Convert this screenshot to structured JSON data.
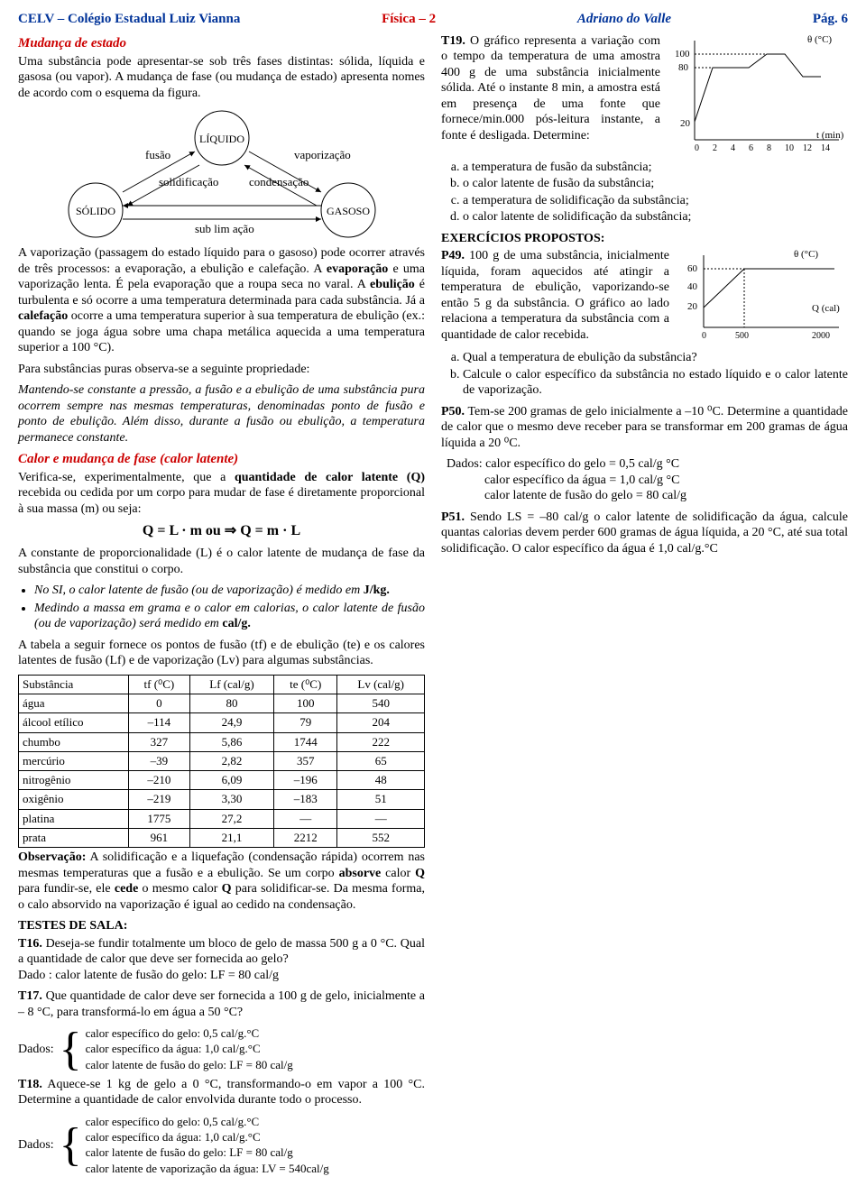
{
  "header": {
    "left": "CELV – Colégio Estadual Luiz Vianna",
    "mid": "Física – 2",
    "author": "Adriano do Valle",
    "page": "Pág. 6"
  },
  "s1_title": "Mudança de estado",
  "s1_p1": "Uma substância pode apresentar-se sob três fases distintas: sólida, líquida e gasosa (ou vapor). A mudança de fase (ou mudança de estado) apresenta nomes de acordo com o esquema da figura.",
  "diagram": {
    "solido": "SÓLIDO",
    "liquido": "LÍQUIDO",
    "gasoso": "GASOSO",
    "fusao": "fusão",
    "vaporizacao": "vaporização",
    "solidificacao": "solidificação",
    "condensacao": "condensação",
    "sublimacao": "sub lim ação"
  },
  "s1_p2a": "A vaporização (passagem do estado líquido para o gasoso) pode ocorrer através de três processos: a evaporação, a ebulição e calefação. A ",
  "s1_p2b": "evaporação",
  "s1_p2c": " e uma vaporização lenta. É pela evaporação que a roupa seca no varal. A ",
  "s1_p2d": "ebulição",
  "s1_p2e": " é turbulenta e só ocorre a uma temperatura determinada para cada substância. Já a ",
  "s1_p2f": "calefação",
  "s1_p2g": " ocorre a uma temperatura superior à sua temperatura de ebulição (ex.: quando se joga água sobre uma chapa metálica aquecida a uma temperatura superior a 100 °C).",
  "s1_p3": "Para substâncias puras observa-se a seguinte propriedade:",
  "s1_p4": "Mantendo-se constante a pressão, a fusão e a ebulição de uma substância pura ocorrem sempre nas mesmas temperaturas, denominadas ponto de fusão e ponto de ebulição. Além disso, durante a fusão ou ebulição, a temperatura permanece constante.",
  "s2_title": "Calor e mudança de fase (calor latente)",
  "s2_p1a": "Verifica-se, experimentalmente, que a ",
  "s2_p1b": "quantidade de calor latente (Q)",
  "s2_p1c": " recebida ou cedida por um corpo para mudar de fase é diretamente proporcional à sua massa (m) ou seja:",
  "formula": "Q = L · m   ou   ⇒   Q = m · L",
  "s2_p2": "A constante de proporcionalidade (L) é o calor latente de mudança de fase da substância que constitui o corpo.",
  "bul1a": "No SI, o calor latente de fusão (ou de vaporização) é medido em ",
  "bul1b": "J/kg.",
  "bul2a": "Medindo a massa em grama e o calor em calorias, o calor latente de fusão (ou de vaporização) será medido em ",
  "bul2b": "cal/g.",
  "tbl_intro": "A tabela a seguir fornece os pontos de fusão (tf) e de ebulição (te) e os calores latentes de fusão (Lf) e de vaporização (Lv) para algumas substâncias.",
  "table": {
    "cols": [
      "Substância",
      "tf (⁰C)",
      "Lf (cal/g)",
      "te (⁰C)",
      "Lv (cal/g)"
    ],
    "rows": [
      [
        "água",
        "0",
        "80",
        "100",
        "540"
      ],
      [
        "álcool etílico",
        "–114",
        "24,9",
        "79",
        "204"
      ],
      [
        "chumbo",
        "327",
        "5,86",
        "1744",
        "222"
      ],
      [
        "mercúrio",
        "–39",
        "2,82",
        "357",
        "65"
      ],
      [
        "nitrogênio",
        "–210",
        "6,09",
        "–196",
        "48"
      ],
      [
        "oxigênio",
        "–219",
        "3,30",
        "–183",
        "51"
      ],
      [
        "platina",
        "1775",
        "27,2",
        "—",
        "—"
      ],
      [
        "prata",
        "961",
        "21,1",
        "2212",
        "552"
      ]
    ]
  },
  "obs_a": "Observação:",
  "obs_b": " A solidificação e a liquefação (condensação rápida) ocorrem nas mesmas temperaturas que a fusão e a ebulição. Se um corpo ",
  "obs_c": "absorve",
  "obs_d": " calor ",
  "obs_e": "Q",
  "obs_f": " para fundir-se, ele ",
  "obs_g": "cede",
  "obs_h": " o mesmo calor ",
  "obs_i": "Q",
  "obs_j": " para solidificar-se. Da mesma forma, o calo absorvido na vaporização é igual ao cedido na condensação.",
  "tests_hdr": "TESTES DE SALA:",
  "t16a": "T16.",
  "t16b": " Deseja-se fundir totalmente um bloco de gelo de massa 500 g a 0 °C. Qual a quantidade de calor que deve ser fornecida ao gelo?",
  "t16c": "Dado : calor latente de fusão do gelo: LF = 80 cal/g",
  "t17a": "T17.",
  "t17b": " Que quantidade de calor deve ser fornecida a 100 g de gelo, inicialmente a – 8 °C, para transformá-lo em água a 50 °C?",
  "t17_dados_label": "Dados:",
  "t17_d1": "calor específico do gelo: 0,5 cal/g.°C",
  "t17_d2": "calor específico da água: 1,0 cal/g.°C",
  "t17_d3": "calor latente de fusão do gelo: LF = 80 cal/g",
  "t18a": "T18.",
  "t18b": " Aquece-se 1 kg de gelo a 0 °C, transformando-o em vapor a 100 °C. Determine a quantidade de calor envolvida durante todo o processo.",
  "t18_dados_label": "Dados:",
  "t18_d1": "calor específico do gelo: 0,5 cal/g.°C",
  "t18_d2": "calor específico da água: 1,0 cal/g.°C",
  "t18_d3": "calor latente de fusão do gelo: LF = 80 cal/g",
  "t18_d4": "calor latente de vaporização da água: LV = 540cal/g",
  "t19a": "T19.",
  "t19b": " O gráfico representa a variação com o tempo da temperatura de uma amostra 400 g de uma substância inicialmente sólida. Até o instante 8 min, a amostra está em presença de uma fonte que fornece/min.000 pós-leitura instante, a fonte é desligada. Determine:",
  "t19_opts": [
    "a temperatura de fusão da substância;",
    "o calor latente de fusão da substância;",
    "a temperatura de solidificação da substância;",
    "o calor latente de solidificação da substância;"
  ],
  "graph1": {
    "ylabel": "θ (°C)",
    "xlabel": "t (min)",
    "yvals": [
      "100",
      "80",
      "20"
    ],
    "xvals": [
      "0",
      "2",
      "4",
      "6",
      "8",
      "10",
      "12",
      "14"
    ]
  },
  "ex_hdr": "EXERCÍCIOS PROPOSTOS:",
  "p49a": "P49.",
  "p49b": " 100 g de uma substância, inicialmente líquida, foram aquecidos até atingir a temperatura de ebulição, vaporizando-se então 5 g da substância. O gráfico ao lado relaciona a temperatura da substância com a quantidade de calor recebida.",
  "p49_q": [
    "Qual a temperatura de ebulição da substância?",
    "Calcule o calor específico da substância no estado líquido e o calor latente de vaporização."
  ],
  "graph2": {
    "ylabel": "θ (°C)",
    "xlabel": "Q (cal)",
    "yvals": [
      "60",
      "40",
      "20"
    ],
    "xvals": [
      "0",
      "500",
      "2000"
    ]
  },
  "p50a": "P50.",
  "p50b": " Tem-se 200 gramas de gelo inicialmente a –10 ⁰C. Determine a quantidade de calor que o mesmo deve receber para se transformar em 200 gramas de água líquida a 20 ⁰C.",
  "p50_d_lbl": " Dados:",
  "p50_d1": "calor específico do gelo = 0,5 cal/g °C",
  "p50_d2": "calor específico da água = 1,0 cal/g °C",
  "p50_d3": "calor latente de fusão do gelo = 80 cal/g",
  "p51a": "P51.",
  "p51b": " Sendo LS = –80 cal/g o calor latente de solidificação da água, calcule quantas calorias devem perder 600 gramas de água líquida, a 20 °C, até sua total solidificação. O calor específico da água é 1,0 cal/g.°C"
}
